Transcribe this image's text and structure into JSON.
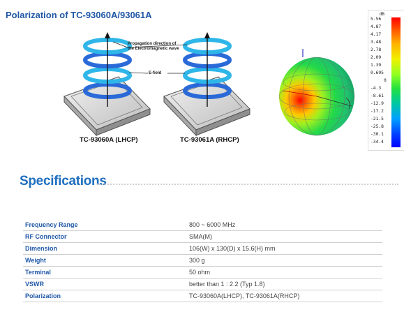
{
  "title": "Polarization of TC-93060A/93061A",
  "figure": {
    "annotation_propagation": [
      "Propagation direction of",
      "the Electromagnetic wave"
    ],
    "annotation_efield": "E-field",
    "model_left": "TC-93060A (LHCP)",
    "model_right": "TC-93061A (RHCP)"
  },
  "colorbar": {
    "unit": "dB",
    "ticks": [
      "5.56",
      "4.87",
      "4.17",
      "3.48",
      "2.78",
      "2.09",
      "1.39",
      "0.695",
      "0",
      "-4.3",
      "-8.61",
      "-12.9",
      "-17.2",
      "-21.5",
      "-25.8",
      "-30.1",
      "-34.4"
    ]
  },
  "specs": {
    "heading": "Specifications",
    "rows": [
      {
        "label": "Frequency Range",
        "value": "800 ~ 6000 MHz"
      },
      {
        "label": "RF Connector",
        "value": "SMA(M)"
      },
      {
        "label": "Dimension",
        "value": "106(W) x 130(D) x 15.6(H) mm"
      },
      {
        "label": "Weight",
        "value": "300 g"
      },
      {
        "label": "Terminal",
        "value": "50 ohm"
      },
      {
        "label": "VSWR",
        "value": "better than 1 : 2.2 (Typ 1.8)"
      },
      {
        "label": "Polarization",
        "value": "TC-93060A(LHCP), TC-93061A(RHCP)"
      }
    ]
  }
}
